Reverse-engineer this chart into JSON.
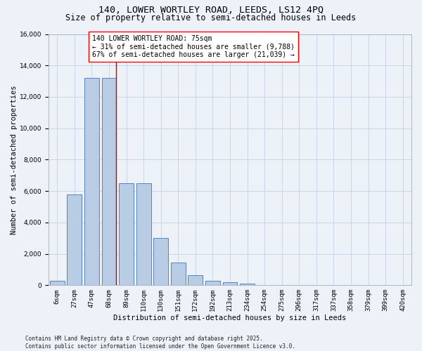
{
  "title_line1": "140, LOWER WORTLEY ROAD, LEEDS, LS12 4PQ",
  "title_line2": "Size of property relative to semi-detached houses in Leeds",
  "xlabel": "Distribution of semi-detached houses by size in Leeds",
  "ylabel": "Number of semi-detached properties",
  "categories": [
    "6sqm",
    "27sqm",
    "47sqm",
    "68sqm",
    "89sqm",
    "110sqm",
    "130sqm",
    "151sqm",
    "172sqm",
    "192sqm",
    "213sqm",
    "234sqm",
    "254sqm",
    "275sqm",
    "296sqm",
    "317sqm",
    "337sqm",
    "358sqm",
    "379sqm",
    "399sqm",
    "420sqm"
  ],
  "values": [
    300,
    5800,
    13200,
    13200,
    6500,
    6500,
    3000,
    1450,
    650,
    300,
    170,
    80,
    0,
    0,
    0,
    0,
    0,
    0,
    0,
    0,
    0
  ],
  "bar_color": "#b8cce4",
  "bar_edge_color": "#4472c4",
  "grid_color": "#c8d8e8",
  "background_color": "#edf2f8",
  "annotation_text_line1": "140 LOWER WORTLEY ROAD: 75sqm",
  "annotation_text_line2": "← 31% of semi-detached houses are smaller (9,788)",
  "annotation_text_line3": "67% of semi-detached houses are larger (21,039) →",
  "vline_color": "#cc0000",
  "vline_x": 3.42,
  "ylim": [
    0,
    16000
  ],
  "yticks": [
    0,
    2000,
    4000,
    6000,
    8000,
    10000,
    12000,
    14000,
    16000
  ],
  "footnote": "Contains HM Land Registry data © Crown copyright and database right 2025.\nContains public sector information licensed under the Open Government Licence v3.0.",
  "title_fontsize": 9.5,
  "subtitle_fontsize": 8.5,
  "axis_label_fontsize": 7.5,
  "tick_fontsize": 6.5,
  "annotation_fontsize": 7,
  "footnote_fontsize": 5.5
}
